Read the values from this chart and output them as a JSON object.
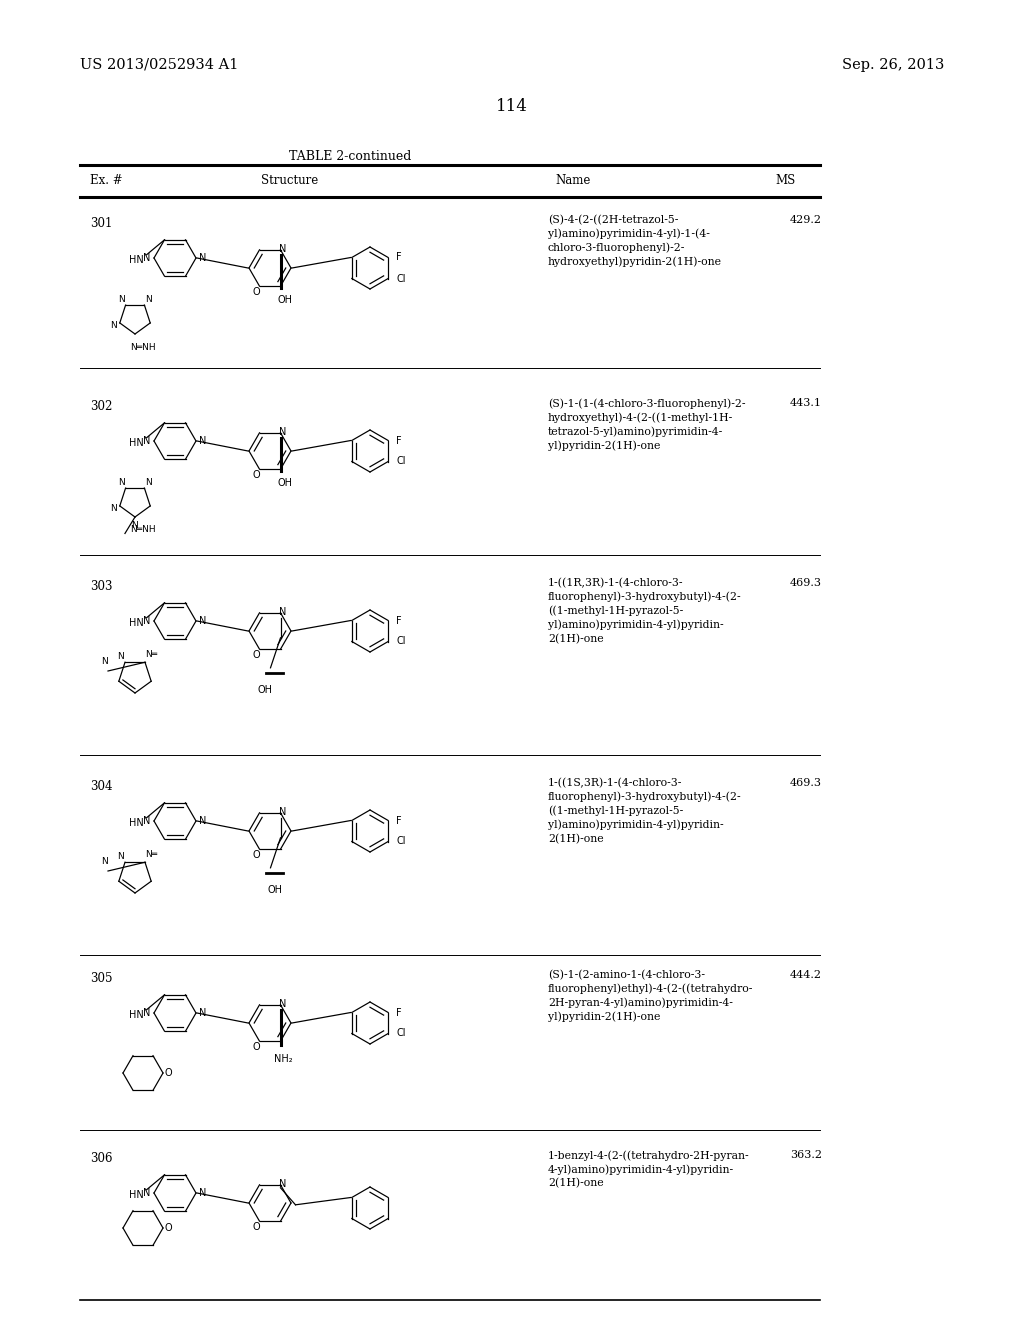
{
  "page_header_left": "US 2013/0252934 A1",
  "page_header_right": "Sep. 26, 2013",
  "page_number": "114",
  "table_title": "TABLE 2-continued",
  "col_headers": [
    "Ex. #",
    "Structure",
    "Name",
    "MS"
  ],
  "background_color": "#ffffff",
  "text_color": "#000000",
  "rows": [
    {
      "ex_num": "301",
      "name": "(S)-4-(2-((2H-tetrazol-5-\nyl)amino)pyrimidin-4-yl)-1-(4-\nchloro-3-fluorophenyl)-2-\nhydroxyethyl)pyridin-2(1H)-one",
      "ms": "429.2"
    },
    {
      "ex_num": "302",
      "name": "(S)-1-(1-(4-chloro-3-fluorophenyl)-2-\nhydroxyethyl)-4-(2-((1-methyl-1H-\ntetrazol-5-yl)amino)pyrimidin-4-\nyl)pyridin-2(1H)-one",
      "ms": "443.1"
    },
    {
      "ex_num": "303",
      "name": "1-((1R,3R)-1-(4-chloro-3-\nfluorophenyl)-3-hydroxybutyl)-4-(2-\n((1-methyl-1H-pyrazol-5-\nyl)amino)pyrimidin-4-yl)pyridin-\n2(1H)-one",
      "ms": "469.3"
    },
    {
      "ex_num": "304",
      "name": "1-((1S,3R)-1-(4-chloro-3-\nfluorophenyl)-3-hydroxybutyl)-4-(2-\n((1-methyl-1H-pyrazol-5-\nyl)amino)pyrimidin-4-yl)pyridin-\n2(1H)-one",
      "ms": "469.3"
    },
    {
      "ex_num": "305",
      "name": "(S)-1-(2-amino-1-(4-chloro-3-\nfluorophenyl)ethyl)-4-(2-((tetrahydro-\n2H-pyran-4-yl)amino)pyrimidin-4-\nyl)pyridin-2(1H)-one",
      "ms": "444.2"
    },
    {
      "ex_num": "306",
      "name": "1-benzyl-4-(2-((tetrahydro-2H-pyran-\n4-yl)amino)pyrimidin-4-yl)pyridin-\n2(1H)-one",
      "ms": "363.2"
    }
  ]
}
